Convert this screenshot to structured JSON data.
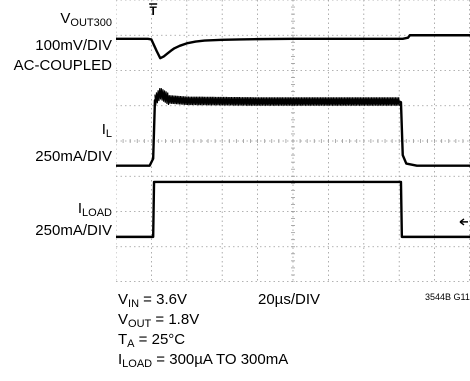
{
  "chart_data": {
    "type": "line",
    "time_per_div_us": 20,
    "x_divisions": 10,
    "y_divisions": 8,
    "grid": true,
    "channels": [
      {
        "id": "vout",
        "label_main": "V",
        "label_sub": "OUT300",
        "scale": "100mV/DIV",
        "coupling": "AC-COUPLED",
        "baseline_div": 6.9,
        "points": [
          [
            0,
            0
          ],
          [
            18,
            0
          ],
          [
            20,
            -0.02
          ],
          [
            23,
            -0.35
          ],
          [
            25,
            -0.55
          ],
          [
            27,
            -0.5
          ],
          [
            29,
            -0.42
          ],
          [
            31,
            -0.34
          ],
          [
            33,
            -0.27
          ],
          [
            36,
            -0.2
          ],
          [
            40,
            -0.13
          ],
          [
            45,
            -0.08
          ],
          [
            50,
            -0.05
          ],
          [
            60,
            -0.03
          ],
          [
            70,
            -0.02
          ],
          [
            80,
            -0.01
          ],
          [
            100,
            0
          ],
          [
            162,
            0
          ],
          [
            165,
            0.03
          ],
          [
            166,
            0.1
          ],
          [
            200,
            0.1
          ]
        ]
      },
      {
        "id": "il",
        "label_main": "I",
        "label_sub": "L",
        "scale": "250mA/DIV",
        "baseline_div": 3.3,
        "noise_amp_div": 0.12,
        "points": [
          [
            0,
            0
          ],
          [
            19,
            0
          ],
          [
            21,
            0.2
          ],
          [
            22,
            1.85
          ],
          [
            25,
            2.05
          ],
          [
            30,
            1.88
          ],
          [
            40,
            1.84
          ],
          [
            80,
            1.82
          ],
          [
            130,
            1.82
          ],
          [
            160,
            1.82
          ],
          [
            161,
            1.8
          ],
          [
            162,
            0.3
          ],
          [
            164,
            0.06
          ],
          [
            170,
            0
          ],
          [
            200,
            0
          ]
        ]
      },
      {
        "id": "iload",
        "label_main": "I",
        "label_sub": "LOAD",
        "scale": "250mA/DIV",
        "baseline_div": 1.28,
        "points": [
          [
            0,
            0
          ],
          [
            21,
            0
          ],
          [
            21.5,
            1.56
          ],
          [
            161,
            1.56
          ],
          [
            161.5,
            0
          ],
          [
            200,
            0
          ]
        ]
      }
    ],
    "conditions": [
      {
        "main": "V",
        "sub": "IN",
        "rest": " = 3.6V"
      },
      {
        "main": "V",
        "sub": "OUT",
        "rest": " = 1.8V"
      },
      {
        "main": "T",
        "sub": "A",
        "rest": " = 25°C"
      },
      {
        "main": "I",
        "sub": "LOAD",
        "rest": " = 300µA TO 300mA"
      }
    ],
    "time_label": "20µs/DIV",
    "figure_id": "3544B G11",
    "trigger_marker": "T"
  }
}
